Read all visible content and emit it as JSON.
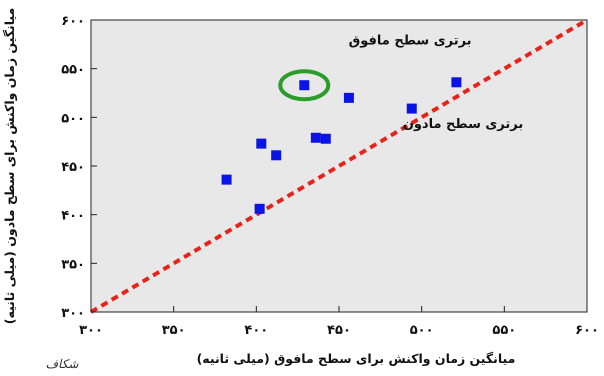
{
  "chart_data": {
    "type": "scatter",
    "xlabel": "میانگین زمان واکنش برای سطح مافوق (میلی ثانیه)",
    "ylabel": "میانگین زمان واکنش برای سطح مادون (میلی ثانیه)",
    "xlim": [
      300,
      600
    ],
    "ylim": [
      300,
      600
    ],
    "x_ticks": [
      300,
      350,
      400,
      450,
      500,
      550,
      600
    ],
    "y_ticks": [
      300,
      350,
      400,
      450,
      500,
      550,
      600
    ],
    "x_tick_labels": [
      "۳۰۰",
      "۳۵۰",
      "۴۰۰",
      "۴۵۰",
      "۵۰۰",
      "۵۵۰",
      "۶۰۰"
    ],
    "y_tick_labels": [
      "۳۰۰",
      "۳۵۰",
      "۴۰۰",
      "۴۵۰",
      "۵۰۰",
      "۵۵۰",
      "۶۰۰"
    ],
    "grid": false,
    "background": "#e8e8e8",
    "marker_color": "#0a14e6",
    "reference_line": {
      "label": "y = x",
      "from": [
        300,
        300
      ],
      "to": [
        600,
        600
      ],
      "color": "#e8231a",
      "style": "dashed"
    },
    "annotations": [
      {
        "text": "برتری سطح مافوق",
        "x": 493,
        "y": 575
      },
      {
        "text": "برتری سطح مادون",
        "x": 525,
        "y": 489
      }
    ],
    "highlight": {
      "x": 429,
      "y": 533,
      "color": "#2a9d2a"
    },
    "points": [
      {
        "x": 382,
        "y": 436
      },
      {
        "x": 402,
        "y": 406
      },
      {
        "x": 403,
        "y": 473
      },
      {
        "x": 412,
        "y": 461
      },
      {
        "x": 429,
        "y": 533
      },
      {
        "x": 436,
        "y": 479
      },
      {
        "x": 442,
        "y": 478
      },
      {
        "x": 456,
        "y": 520
      },
      {
        "x": 494,
        "y": 509
      },
      {
        "x": 521,
        "y": 536
      }
    ]
  },
  "signature_text": "شکاف"
}
